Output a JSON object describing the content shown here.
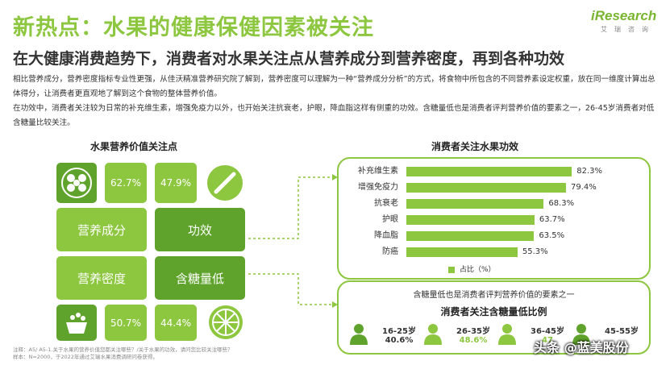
{
  "header": {
    "title": "新热点：水果的健康保健因素被关注",
    "subtitle": "在大健康消费趋势下，消费者对水果关注点从营养成分到营养密度，再到各种功效",
    "logo": {
      "text": "iResearch",
      "sub": "艾瑞咨询"
    }
  },
  "intro": {
    "paragraph1": "相比营养成分，营养密度指标专业性更强，从佳沃精准营养研究院了解到，营养密度可以理解为一种“营养成分分析”的方式，将食物中所包含的不同营养素设定权重，放在同一维度计算出总体得分，让消费者更直观地了解到这个食物的整体营养价值。",
    "paragraph2": "在功效中，消费者关注较为日常的补充维生素，增强免疫力以外，也开始关注抗衰老，护眼，降血脂这样有侧重的功效。含糖量低也是消费者评判营养价值的要素之一，26-45岁消费者对低含糖量比较关注。"
  },
  "left_panel": {
    "title": "水果营养价值关注点",
    "tiles": {
      "pct_top_left": "62.7%",
      "pct_top_right": "47.9%",
      "nutrition": "营养成分",
      "efficacy": "功效",
      "density": "营养密度",
      "low_sugar": "含糖量低",
      "pct_bottom_left": "50.7%",
      "pct_bottom_right": "44.4%"
    },
    "icons": [
      "nutrition-dots-icon",
      "pill-icon",
      "food-bowl-icon",
      "citrus-slice-icon"
    ]
  },
  "chart_data": [
    {
      "type": "bar",
      "orientation": "horizontal",
      "title": "消费者关注水果功效",
      "categories": [
        "补充维生素",
        "增强免疫力",
        "抗衰老",
        "护眼",
        "降血脂",
        "防癌"
      ],
      "series": [
        {
          "name": "占比（%）",
          "values": [
            82.3,
            79.4,
            68.3,
            63.7,
            63.5,
            55.3
          ]
        }
      ],
      "value_labels": [
        "82.3%",
        "79.4%",
        "68.3%",
        "63.7%",
        "63.5%",
        "55.3%"
      ],
      "xlim": [
        0,
        100
      ],
      "legend": "bottom-center",
      "grid": false,
      "color": "#8dc63f"
    }
  ],
  "age_panel": {
    "caption": "含糖量低也是消费者评判营养价值的要素之一",
    "title": "消费者关注含糖量低比例",
    "groups": [
      {
        "label": "16-25岁",
        "value": "40.6%",
        "color": "#5fa32c"
      },
      {
        "label": "26-35岁",
        "value": "48.6%",
        "color": "#8dc63f"
      },
      {
        "label": "36-45岁",
        "value": "47",
        "color": "#8dc63f"
      },
      {
        "label": "45-55岁",
        "value": "",
        "color": "#5fa32c"
      }
    ]
  },
  "footnote": {
    "line1": "注释：A5/ A5-1.关于水果的营养价值您都关注哪些？/关于水果的功效，请问您比较关注哪些？",
    "line2": "样本：N=2000，于2022年通过艾瑞水果消费调研问卷获得。"
  },
  "watermark": "头条 @蓝美股份",
  "colors": {
    "accent_light": "#8dc63f",
    "accent_dark": "#5fa32c",
    "text": "#333333"
  }
}
